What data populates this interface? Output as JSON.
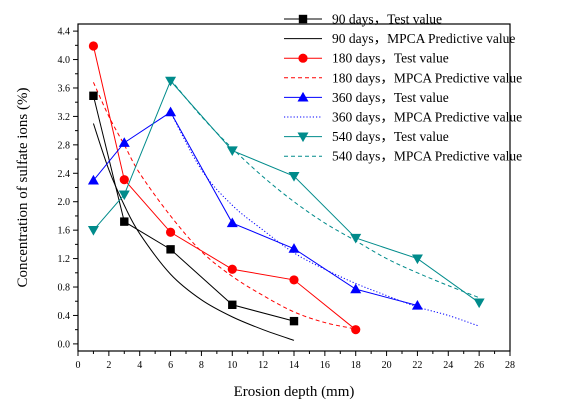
{
  "chart_data": {
    "type": "line",
    "xlabel": "Erosion depth (mm)",
    "ylabel": "Concentration of sulfate ions (%)",
    "xlim": [
      0,
      28
    ],
    "ylim": [
      -0.1,
      4.5
    ],
    "xticks": [
      0,
      2,
      4,
      6,
      8,
      10,
      12,
      14,
      16,
      18,
      20,
      22,
      24,
      26,
      28
    ],
    "yticks": [
      0.0,
      0.4,
      0.8,
      1.2,
      1.6,
      2.0,
      2.4,
      2.8,
      3.2,
      3.6,
      4.0,
      4.4
    ],
    "ytick_labels": [
      "0.0",
      "0.4",
      "0.8",
      "1.2",
      "1.6",
      "2.0",
      "2.4",
      "2.8",
      "3.2",
      "3.6",
      "4.0",
      "4.4"
    ],
    "grid": false,
    "legend_position": "top-right",
    "series": [
      {
        "name": "90 days，Test value",
        "kind": "test",
        "marker": "square",
        "color": "#000000",
        "x": [
          1,
          3,
          6,
          10,
          14
        ],
        "y": [
          3.49,
          1.72,
          1.33,
          0.55,
          0.32
        ]
      },
      {
        "name": "90 days，MPCA Predictive value",
        "kind": "predicted",
        "dash": "solid",
        "color": "#000000",
        "x": [
          1,
          2,
          3,
          4,
          6,
          8,
          10,
          12,
          14
        ],
        "y": [
          3.1,
          2.45,
          1.95,
          1.55,
          0.98,
          0.62,
          0.38,
          0.2,
          0.05
        ]
      },
      {
        "name": "180 days，Test value",
        "kind": "test",
        "marker": "circle",
        "color": "#ff0000",
        "x": [
          1,
          3,
          6,
          10,
          14,
          18
        ],
        "y": [
          4.19,
          2.31,
          1.57,
          1.05,
          0.9,
          0.2
        ]
      },
      {
        "name": "180 days，MPCA Predictive value",
        "kind": "predicted",
        "dash": "dashed",
        "color": "#ff0000",
        "x": [
          1,
          2,
          3,
          4,
          6,
          8,
          10,
          12,
          14,
          16,
          18
        ],
        "y": [
          3.68,
          3.2,
          2.8,
          2.4,
          1.8,
          1.3,
          0.95,
          0.68,
          0.45,
          0.3,
          0.21
        ]
      },
      {
        "name": "360 days，Test value",
        "kind": "test",
        "marker": "triangle-up",
        "color": "#0000ff",
        "x": [
          1,
          3,
          6,
          10,
          14,
          18,
          22
        ],
        "y": [
          2.3,
          2.83,
          3.26,
          1.7,
          1.34,
          0.77,
          0.54
        ]
      },
      {
        "name": "360 days，MPCA Predictive value",
        "kind": "predicted",
        "dash": "dotted",
        "color": "#0000ff",
        "x": [
          6,
          8,
          10,
          12,
          14,
          16,
          18,
          20,
          22,
          24,
          26
        ],
        "y": [
          3.26,
          2.45,
          1.95,
          1.6,
          1.28,
          1.05,
          0.85,
          0.68,
          0.52,
          0.4,
          0.25
        ]
      },
      {
        "name": "540 days，Test value",
        "kind": "test",
        "marker": "triangle-down",
        "color": "#008b8b",
        "x": [
          1,
          3,
          6,
          10,
          14,
          18,
          22,
          26
        ],
        "y": [
          1.6,
          2.1,
          3.7,
          2.72,
          2.36,
          1.49,
          1.2,
          0.58
        ]
      },
      {
        "name": "540 days，MPCA Predictive value",
        "kind": "predicted",
        "dash": "dashed",
        "color": "#008b8b",
        "x": [
          6,
          8,
          10,
          12,
          14,
          16,
          18,
          20,
          22,
          24,
          26
        ],
        "y": [
          3.72,
          3.2,
          2.75,
          2.35,
          2.0,
          1.7,
          1.45,
          1.2,
          1.0,
          0.82,
          0.65
        ]
      }
    ]
  }
}
